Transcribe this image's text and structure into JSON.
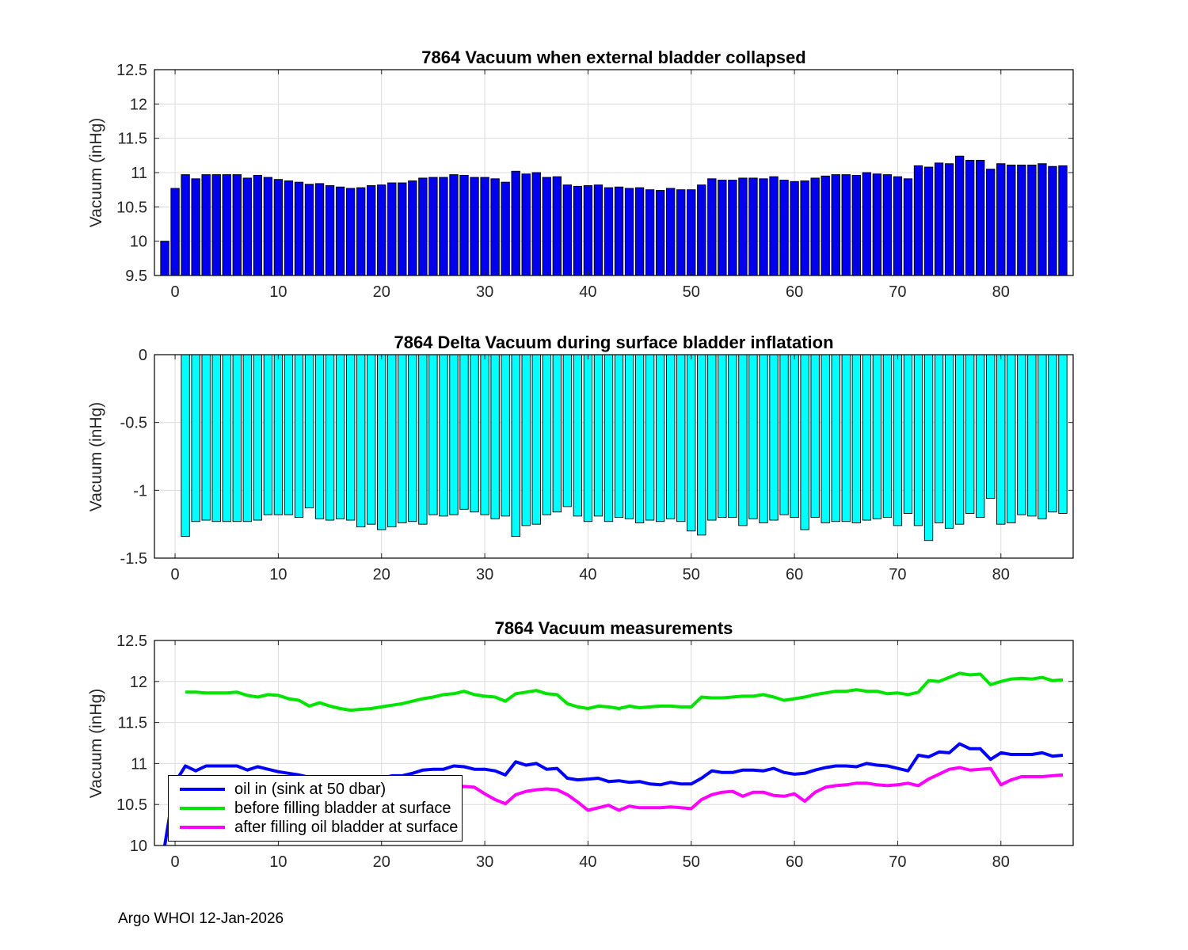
{
  "figure": {
    "footer": "Argo WHOI 12-Jan-2026",
    "background": "#ffffff"
  },
  "colors": {
    "bar_blue": "#0000EE",
    "bar_cyan": "#00FFFF",
    "line_blue": "#0000FF",
    "line_green": "#00E400",
    "line_magenta": "#FF00FF",
    "grid": "#DCDCDC",
    "axis": "#000000",
    "tick_text": "#262626",
    "title_text": "#000000"
  },
  "chart_data": [
    {
      "type": "bar",
      "title": "7864 Vacuum when external bladder collapsed",
      "ylabel": "Vacuum (inHg)",
      "xlabel": "",
      "xlim": [
        -2,
        87
      ],
      "ylim": [
        9.5,
        12.5
      ],
      "xticks": [
        0,
        10,
        20,
        30,
        40,
        50,
        60,
        70,
        80
      ],
      "yticks": [
        9.5,
        10,
        10.5,
        11,
        11.5,
        12,
        12.5
      ],
      "grid": true,
      "bar_color_key": "bar_blue",
      "x_start": -1,
      "values": [
        10.0,
        10.77,
        10.97,
        10.91,
        10.97,
        10.97,
        10.97,
        10.97,
        10.92,
        10.96,
        10.93,
        10.9,
        10.88,
        10.86,
        10.83,
        10.84,
        10.81,
        10.79,
        10.77,
        10.78,
        10.81,
        10.82,
        10.85,
        10.85,
        10.88,
        10.92,
        10.93,
        10.93,
        10.97,
        10.96,
        10.93,
        10.93,
        10.91,
        10.86,
        11.02,
        10.98,
        11.0,
        10.93,
        10.94,
        10.82,
        10.8,
        10.81,
        10.82,
        10.78,
        10.79,
        10.77,
        10.78,
        10.75,
        10.74,
        10.77,
        10.75,
        10.75,
        10.82,
        10.91,
        10.89,
        10.89,
        10.92,
        10.92,
        10.91,
        10.94,
        10.89,
        10.87,
        10.88,
        10.92,
        10.95,
        10.97,
        10.97,
        10.96,
        11.0,
        10.98,
        10.97,
        10.94,
        10.91,
        11.1,
        11.08,
        11.14,
        11.13,
        11.24,
        11.18,
        11.18,
        11.05,
        11.13,
        11.11,
        11.11,
        11.11,
        11.13,
        11.09,
        11.1
      ]
    },
    {
      "type": "bar",
      "title": "7864 Delta Vacuum during surface bladder inflatation",
      "ylabel": "Vacuum (inHg)",
      "xlabel": "",
      "xlim": [
        -2,
        87
      ],
      "ylim": [
        -1.5,
        0
      ],
      "xticks": [
        0,
        10,
        20,
        30,
        40,
        50,
        60,
        70,
        80
      ],
      "yticks": [
        0,
        -0.5,
        -1,
        -1.5
      ],
      "grid": true,
      "bar_color_key": "bar_cyan",
      "x_start": 1,
      "values": [
        -1.34,
        -1.23,
        -1.22,
        -1.23,
        -1.23,
        -1.23,
        -1.23,
        -1.22,
        -1.18,
        -1.18,
        -1.18,
        -1.2,
        -1.13,
        -1.21,
        -1.22,
        -1.21,
        -1.22,
        -1.27,
        -1.25,
        -1.29,
        -1.27,
        -1.24,
        -1.23,
        -1.25,
        -1.18,
        -1.19,
        -1.18,
        -1.14,
        -1.16,
        -1.18,
        -1.21,
        -1.19,
        -1.34,
        -1.26,
        -1.25,
        -1.18,
        -1.16,
        -1.12,
        -1.19,
        -1.23,
        -1.19,
        -1.23,
        -1.2,
        -1.21,
        -1.24,
        -1.22,
        -1.23,
        -1.21,
        -1.23,
        -1.3,
        -1.33,
        -1.22,
        -1.2,
        -1.2,
        -1.26,
        -1.21,
        -1.24,
        -1.22,
        -1.18,
        -1.2,
        -1.29,
        -1.2,
        -1.24,
        -1.23,
        -1.23,
        -1.24,
        -1.22,
        -1.21,
        -1.2,
        -1.26,
        -1.17,
        -1.26,
        -1.37,
        -1.24,
        -1.28,
        -1.25,
        -1.17,
        -1.2,
        -1.06,
        -1.25,
        -1.24,
        -1.18,
        -1.19,
        -1.21,
        -1.16,
        -1.17
      ]
    },
    {
      "type": "line",
      "title": "7864 Vacuum measurements",
      "ylabel": "Vacuum (inHg)",
      "xlabel": "",
      "xlim": [
        -2,
        87
      ],
      "ylim": [
        10,
        12.5
      ],
      "xticks": [
        0,
        10,
        20,
        30,
        40,
        50,
        60,
        70,
        80
      ],
      "yticks": [
        10,
        10.5,
        11,
        11.5,
        12,
        12.5
      ],
      "grid": true,
      "legend_position": "southwest",
      "series": [
        {
          "name": "oil in (sink at 50 dbar)",
          "color_key": "line_blue",
          "x_start": -1,
          "values": [
            10.0,
            10.77,
            10.97,
            10.91,
            10.97,
            10.97,
            10.97,
            10.97,
            10.92,
            10.96,
            10.93,
            10.9,
            10.88,
            10.86,
            10.83,
            10.84,
            10.81,
            10.79,
            10.77,
            10.78,
            10.81,
            10.82,
            10.85,
            10.85,
            10.88,
            10.92,
            10.93,
            10.93,
            10.97,
            10.96,
            10.93,
            10.93,
            10.91,
            10.86,
            11.02,
            10.98,
            11.0,
            10.93,
            10.94,
            10.82,
            10.8,
            10.81,
            10.82,
            10.78,
            10.79,
            10.77,
            10.78,
            10.75,
            10.74,
            10.77,
            10.75,
            10.75,
            10.82,
            10.91,
            10.89,
            10.89,
            10.92,
            10.92,
            10.91,
            10.94,
            10.89,
            10.87,
            10.88,
            10.92,
            10.95,
            10.97,
            10.97,
            10.96,
            11.0,
            10.98,
            10.97,
            10.94,
            10.91,
            11.1,
            11.08,
            11.14,
            11.13,
            11.24,
            11.18,
            11.18,
            11.05,
            11.13,
            11.11,
            11.11,
            11.11,
            11.13,
            11.09,
            11.1
          ]
        },
        {
          "name": "before filling bladder at surface",
          "color_key": "line_green",
          "x_start": 1,
          "values": [
            11.87,
            11.87,
            11.86,
            11.86,
            11.86,
            11.87,
            11.83,
            11.81,
            11.84,
            11.83,
            11.79,
            11.77,
            11.7,
            11.74,
            11.7,
            11.67,
            11.65,
            11.66,
            11.67,
            11.69,
            11.71,
            11.73,
            11.76,
            11.79,
            11.81,
            11.84,
            11.85,
            11.88,
            11.84,
            11.82,
            11.81,
            11.76,
            11.85,
            11.87,
            11.89,
            11.85,
            11.84,
            11.73,
            11.69,
            11.67,
            11.7,
            11.69,
            11.67,
            11.7,
            11.68,
            11.69,
            11.7,
            11.7,
            11.69,
            11.69,
            11.81,
            11.8,
            11.8,
            11.81,
            11.82,
            11.82,
            11.84,
            11.81,
            11.77,
            11.79,
            11.81,
            11.84,
            11.86,
            11.88,
            11.88,
            11.9,
            11.88,
            11.88,
            11.85,
            11.86,
            11.84,
            11.87,
            12.01,
            12.0,
            12.05,
            12.1,
            12.08,
            12.09,
            11.96,
            12.0,
            12.03,
            12.04,
            12.03,
            12.05,
            12.01,
            12.02
          ]
        },
        {
          "name": "after filling oil bladder at surface",
          "color_key": "line_magenta",
          "x_start": 1,
          "values": [
            10.53,
            10.64,
            10.64,
            10.63,
            10.63,
            10.64,
            10.6,
            10.59,
            10.66,
            10.65,
            10.61,
            10.57,
            10.57,
            10.53,
            10.48,
            10.46,
            10.43,
            10.39,
            10.42,
            10.4,
            10.44,
            10.49,
            10.53,
            10.54,
            10.63,
            10.65,
            10.71,
            10.72,
            10.71,
            10.63,
            10.56,
            10.51,
            10.62,
            10.66,
            10.68,
            10.69,
            10.68,
            10.62,
            10.53,
            10.43,
            10.46,
            10.49,
            10.43,
            10.48,
            10.46,
            10.46,
            10.46,
            10.47,
            10.46,
            10.45,
            10.56,
            10.62,
            10.65,
            10.66,
            10.6,
            10.65,
            10.65,
            10.61,
            10.6,
            10.63,
            10.54,
            10.65,
            10.71,
            10.73,
            10.74,
            10.76,
            10.76,
            10.74,
            10.73,
            10.74,
            10.76,
            10.73,
            10.81,
            10.87,
            10.93,
            10.95,
            10.92,
            10.93,
            10.94,
            10.74,
            10.8,
            10.84,
            10.84,
            10.84,
            10.85,
            10.86
          ]
        }
      ]
    }
  ]
}
